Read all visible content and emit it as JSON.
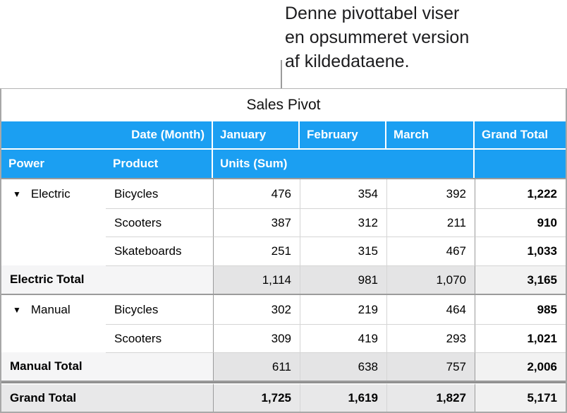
{
  "callout": {
    "lines": [
      "Denne pivottabel viser",
      "en opsummeret version",
      "af kildedataene."
    ]
  },
  "pivot": {
    "title": "Sales Pivot",
    "disclosure": "▼",
    "header_row_1": {
      "date_month": "Date (Month)",
      "january": "January",
      "february": "February",
      "march": "March",
      "grand_total": "Grand Total"
    },
    "header_row_2": {
      "power": "Power",
      "product": "Product",
      "units_sum": "Units (Sum)"
    },
    "rows": [
      {
        "power": "Electric",
        "product": "Bicycles",
        "january": "476",
        "february": "354",
        "march": "392",
        "grand_total": "1,222"
      },
      {
        "power": "",
        "product": "Scooters",
        "january": "387",
        "february": "312",
        "march": "211",
        "grand_total": "910"
      },
      {
        "power": "",
        "product": "Skateboards",
        "january": "251",
        "february": "315",
        "march": "467",
        "grand_total": "1,033"
      },
      {
        "label": "Electric Total",
        "january": "1,114",
        "february": "981",
        "march": "1,070",
        "grand_total": "3,165"
      },
      {
        "power": "Manual",
        "product": "Bicycles",
        "january": "302",
        "february": "219",
        "march": "464",
        "grand_total": "985"
      },
      {
        "power": "",
        "product": "Scooters",
        "january": "309",
        "february": "419",
        "march": "293",
        "grand_total": "1,021"
      },
      {
        "label": "Manual Total",
        "january": "611",
        "february": "638",
        "march": "757",
        "grand_total": "2,006"
      },
      {
        "label": "Grand Total",
        "january": "1,725",
        "february": "1,619",
        "march": "1,827",
        "grand_total": "5,171"
      }
    ],
    "colors": {
      "header_blue": "#1b9ff2",
      "header_text": "#ffffff",
      "subtotal_label_bg": "#f5f5f6",
      "subtotal_value_bg": "#e4e4e5",
      "subtotal_total_bg": "#f2f2f2",
      "grand_total_bg": "#e8e8e9",
      "grand_total_last_bg": "#f1f1f1",
      "border_dark": "#9b9b9b",
      "border_light": "#d5d5d5"
    }
  }
}
